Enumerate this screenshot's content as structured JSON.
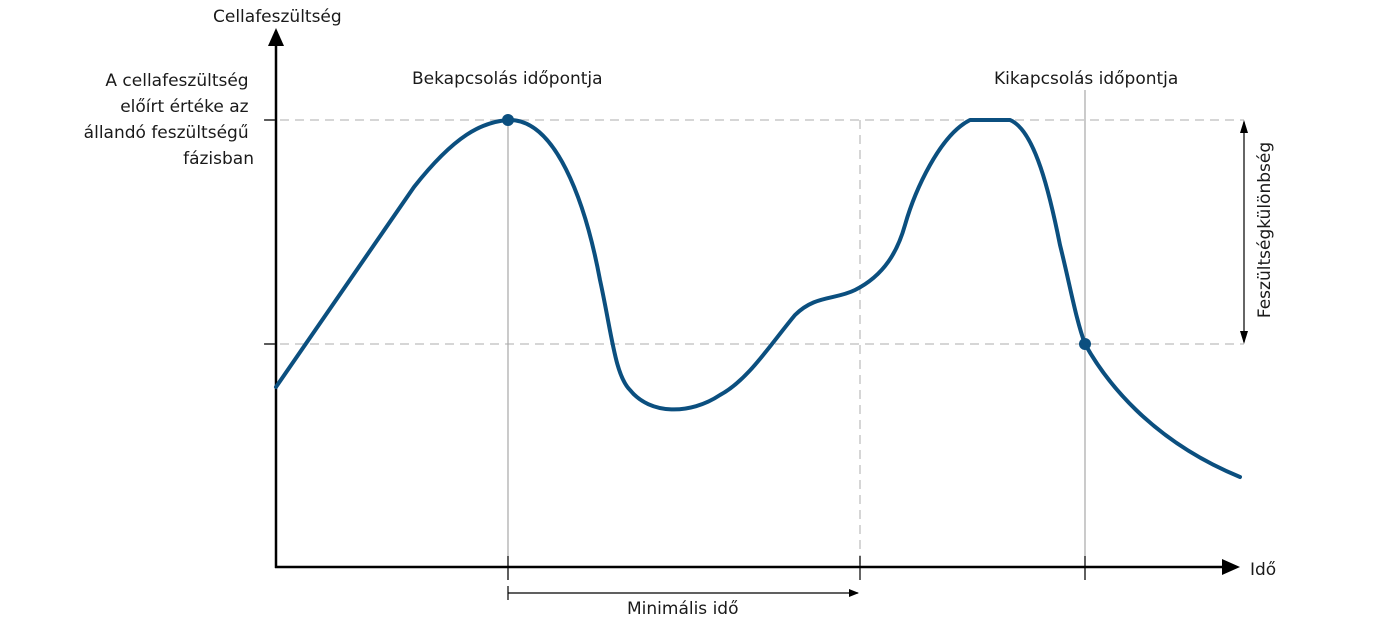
{
  "y_axis_label": "Cellafeszültség",
  "x_axis_label": "Idő",
  "setpoint_label": [
    "A cellafeszültség",
    "előírt értéke az",
    "állandó feszültségű",
    "fázisban"
  ],
  "turn_on_label": "Bekapcsolás időpontja",
  "turn_off_label": "Kikapcsolás időpontja",
  "voltage_difference_label": "Feszültségkülönbség",
  "min_time_label": "Minimális idő",
  "colors": {
    "curve": "#0b4f7f",
    "axis": "#000000",
    "guide": "#c8c8c8"
  }
}
